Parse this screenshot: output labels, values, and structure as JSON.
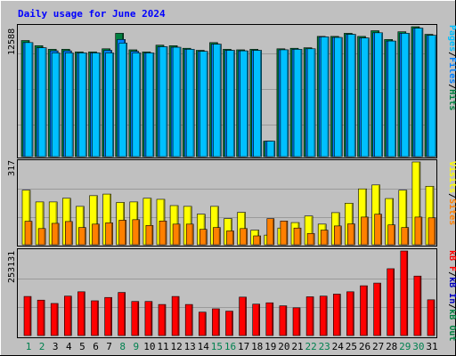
{
  "title": "Daily usage for June 2024",
  "colors": {
    "background": "#c0c0c0",
    "title": "#0000ff",
    "hits": "#008040",
    "files": "#0080ff",
    "pages": "#00c0ff",
    "visits": "#ffff00",
    "sites": "#ff8000",
    "kbytes": "#ff0000",
    "weekend_day": "#00804f",
    "weekday_day": "#000000"
  },
  "panels": {
    "top": {
      "max_label": "12588",
      "legend": [
        {
          "text": "Pages",
          "color": "#00c0ff"
        },
        {
          "text": "/",
          "color": "#000000"
        },
        {
          "text": "Files",
          "color": "#0080ff"
        },
        {
          "text": "/",
          "color": "#000000"
        },
        {
          "text": "Hits",
          "color": "#008040"
        }
      ]
    },
    "middle": {
      "max_label": "317",
      "legend": [
        {
          "text": "Visits",
          "color": "#ffff00"
        },
        {
          "text": "/",
          "color": "#000000"
        },
        {
          "text": "Sites",
          "color": "#ff8000"
        }
      ]
    },
    "bottom": {
      "max_label": "253131",
      "legend": [
        {
          "text": "kB F",
          "color": "#ff0000"
        },
        {
          "text": "/",
          "color": "#000000"
        },
        {
          "text": "kB In",
          "color": "#0000c0"
        },
        {
          "text": "/",
          "color": "#000000"
        },
        {
          "text": "kB Out",
          "color": "#008040"
        }
      ]
    }
  },
  "chart_data": {
    "type": "bar",
    "title": "Daily usage for June 2024",
    "categories": [
      "1",
      "2",
      "3",
      "4",
      "5",
      "6",
      "7",
      "8",
      "9",
      "10",
      "11",
      "12",
      "13",
      "14",
      "15",
      "16",
      "17",
      "18",
      "19",
      "20",
      "21",
      "22",
      "23",
      "24",
      "25",
      "26",
      "27",
      "28",
      "29",
      "30",
      "31"
    ],
    "weekend_days": [
      "1",
      "2",
      "8",
      "9",
      "15",
      "16",
      "22",
      "23",
      "29",
      "30"
    ],
    "series": [
      {
        "name": "Hits",
        "panel": "top",
        "max": 12588,
        "values": [
          11250,
          10750,
          10400,
          10400,
          10150,
          10150,
          10450,
          11950,
          10350,
          10150,
          10800,
          10750,
          10500,
          10300,
          11050,
          10400,
          10350,
          10400,
          1500,
          10450,
          10500,
          10550,
          11650,
          11650,
          11950,
          11650,
          12200,
          11350,
          12100,
          12588,
          11850
        ]
      },
      {
        "name": "Files",
        "panel": "top",
        "max": 12588,
        "values": [
          11050,
          10550,
          10250,
          10250,
          10050,
          10050,
          10300,
          11350,
          10200,
          10050,
          10650,
          10600,
          10400,
          10200,
          10900,
          10300,
          10250,
          10300,
          1500,
          10350,
          10400,
          10450,
          11600,
          11550,
          11850,
          11500,
          12000,
          11200,
          11950,
          12450,
          11750
        ]
      },
      {
        "name": "Pages",
        "panel": "top",
        "max": 12588,
        "values": [
          11050,
          10550,
          10050,
          10050,
          10050,
          10050,
          10050,
          11000,
          10050,
          10050,
          10650,
          10600,
          10400,
          10200,
          10900,
          10300,
          10250,
          10300,
          1500,
          10350,
          10400,
          10450,
          11600,
          11550,
          11850,
          11500,
          12000,
          11200,
          11950,
          12450,
          11750
        ]
      },
      {
        "name": "Visits",
        "panel": "middle",
        "max": 317,
        "values": [
          209,
          164,
          164,
          178,
          147,
          188,
          194,
          162,
          164,
          178,
          174,
          150,
          147,
          117,
          147,
          100,
          124,
          56,
          37,
          64,
          85,
          110,
          79,
          123,
          159,
          214,
          229,
          177,
          209,
          317,
          224
        ]
      },
      {
        "name": "Sites",
        "panel": "middle",
        "max": 317,
        "values": [
          90,
          62,
          82,
          89,
          66,
          79,
          84,
          94,
          96,
          74,
          91,
          79,
          79,
          59,
          66,
          53,
          62,
          34,
          100,
          91,
          64,
          43,
          56,
          72,
          80,
          106,
          117,
          76,
          66,
          106,
          103
        ]
      },
      {
        "name": "kB F",
        "panel": "bottom",
        "max": 253131,
        "values": [
          117000,
          106000,
          96000,
          118000,
          131000,
          104000,
          114000,
          129000,
          102000,
          102000,
          93000,
          117000,
          93000,
          70000,
          80000,
          73000,
          115000,
          94000,
          98000,
          89000,
          83000,
          116000,
          118000,
          124000,
          131000,
          149000,
          157000,
          200000,
          253131,
          178000,
          107000
        ]
      }
    ]
  }
}
